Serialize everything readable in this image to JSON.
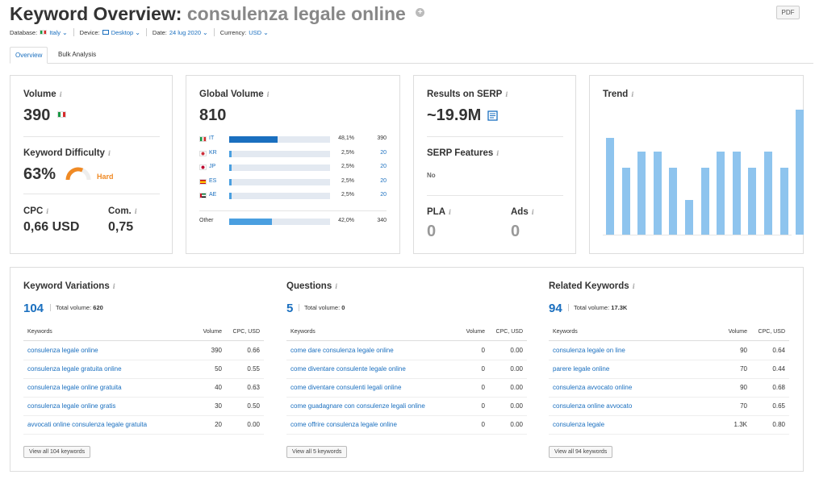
{
  "header": {
    "title_prefix": "Keyword Overview:",
    "keyword": "consulenza legale online",
    "pdf_label": "PDF"
  },
  "filters": {
    "database_label": "Database:",
    "database_value": "Italy",
    "device_label": "Device:",
    "device_value": "Desktop",
    "date_label": "Date:",
    "date_value": "24 lug 2020",
    "currency_label": "Currency:",
    "currency_value": "USD"
  },
  "tabs": [
    {
      "label": "Overview"
    },
    {
      "label": "Bulk Analysis"
    }
  ],
  "volume_card": {
    "volume_label": "Volume",
    "volume_value": "390",
    "kd_label": "Keyword Difficulty",
    "kd_value": "63%",
    "kd_percent": 63,
    "kd_text": "Hard",
    "cpc_label": "CPC",
    "cpc_value": "0,66 USD",
    "com_label": "Com.",
    "com_value": "0,75"
  },
  "global_volume": {
    "label": "Global Volume",
    "value": "810",
    "rows": [
      {
        "code": "IT",
        "pct": "48,1%",
        "vol": "390",
        "fill": 48.1
      },
      {
        "code": "KR",
        "pct": "2,5%",
        "vol": "20",
        "fill": 2.5
      },
      {
        "code": "JP",
        "pct": "2,5%",
        "vol": "20",
        "fill": 2.5
      },
      {
        "code": "ES",
        "pct": "2,5%",
        "vol": "20",
        "fill": 2.5
      },
      {
        "code": "AE",
        "pct": "2,5%",
        "vol": "20",
        "fill": 2.5
      }
    ],
    "other": {
      "code": "Other",
      "pct": "42,0%",
      "vol": "340",
      "fill": 42.0
    }
  },
  "serp_card": {
    "results_label": "Results on SERP",
    "results_value": "~19.9M",
    "features_label": "SERP Features",
    "features_value": "No",
    "pla_label": "PLA",
    "pla_value": "0",
    "ads_label": "Ads",
    "ads_value": "0"
  },
  "trend": {
    "label": "Trend",
    "values": [
      62,
      43,
      53,
      53,
      43,
      22,
      43,
      53,
      53,
      43,
      53,
      43,
      80
    ]
  },
  "sections": [
    {
      "title": "Keyword Variations",
      "count": "104",
      "total_label": "Total volume:",
      "total_value": "620",
      "col_keywords": "Keywords",
      "col_volume": "Volume",
      "col_cpc": "CPC, USD",
      "rows": [
        {
          "kw": "consulenza legale online",
          "vol": "390",
          "cpc": "0.66"
        },
        {
          "kw": "consulenza legale gratuita online",
          "vol": "50",
          "cpc": "0.55"
        },
        {
          "kw": "consulenza legale online gratuita",
          "vol": "40",
          "cpc": "0.63"
        },
        {
          "kw": "consulenza legale online gratis",
          "vol": "30",
          "cpc": "0.50"
        },
        {
          "kw": "avvocati online consulenza legale gratuita",
          "vol": "20",
          "cpc": "0.00"
        }
      ],
      "button": "View all 104 keywords"
    },
    {
      "title": "Questions",
      "count": "5",
      "total_label": "Total volume:",
      "total_value": "0",
      "col_keywords": "Keywords",
      "col_volume": "Volume",
      "col_cpc": "CPC, USD",
      "rows": [
        {
          "kw": "come dare consulenza legale online",
          "vol": "0",
          "cpc": "0.00"
        },
        {
          "kw": "come diventare consulente legale online",
          "vol": "0",
          "cpc": "0.00"
        },
        {
          "kw": "come diventare consulenti legali online",
          "vol": "0",
          "cpc": "0.00"
        },
        {
          "kw": "come guadagnare con consulenze legali online",
          "vol": "0",
          "cpc": "0.00"
        },
        {
          "kw": "come offrire consulenza legale online",
          "vol": "0",
          "cpc": "0.00"
        }
      ],
      "button": "View all 5 keywords"
    },
    {
      "title": "Related Keywords",
      "count": "94",
      "total_label": "Total volume:",
      "total_value": "17.3K",
      "col_keywords": "Keywords",
      "col_volume": "Volume",
      "col_cpc": "CPC, USD",
      "rows": [
        {
          "kw": "consulenza legale on line",
          "vol": "90",
          "cpc": "0.64"
        },
        {
          "kw": "parere legale online",
          "vol": "70",
          "cpc": "0.44"
        },
        {
          "kw": "consulenza avvocato online",
          "vol": "90",
          "cpc": "0.68"
        },
        {
          "kw": "consulenza online avvocato",
          "vol": "70",
          "cpc": "0.65"
        },
        {
          "kw": "consulenza legale",
          "vol": "1.3K",
          "cpc": "0.80"
        }
      ],
      "button": "View all 94 keywords"
    }
  ],
  "colors": {
    "accent": "#1a6fbf",
    "bar_light": "#4a9fe0",
    "trend": "#8ec4ee",
    "hard": "#f08a24"
  },
  "icons": [
    "add-circle-icon",
    "italy-flag-icon",
    "desktop-icon",
    "chevron-down-icon",
    "info-icon",
    "serp-page-icon"
  ]
}
